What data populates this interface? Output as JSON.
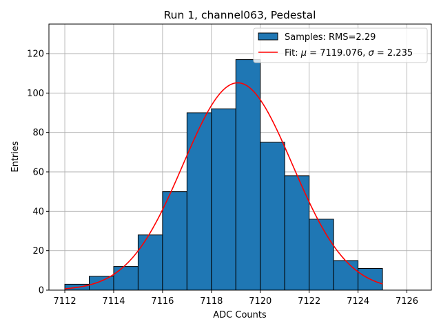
{
  "chart_data": {
    "type": "bar",
    "title": "Run 1, channel063, Pedestal",
    "xlabel": "ADC Counts",
    "ylabel": "Entries",
    "xlim": [
      7111.35,
      7127.0
    ],
    "ylim": [
      0,
      135
    ],
    "xticks": [
      7112,
      7114,
      7116,
      7118,
      7120,
      7122,
      7124,
      7126
    ],
    "yticks": [
      0,
      20,
      40,
      60,
      80,
      100,
      120
    ],
    "grid": true,
    "legend_position": "top-right",
    "histogram": {
      "name": "Samples: RMS=2.29",
      "bin_edges": [
        7112,
        7113,
        7114,
        7115,
        7116,
        7117,
        7118,
        7119,
        7120,
        7121,
        7122,
        7123,
        7124,
        7125
      ],
      "counts": [
        3,
        7,
        12,
        28,
        50,
        90,
        92,
        117,
        75,
        58,
        36,
        15,
        11
      ],
      "color": "#1f77b4",
      "edge_color": "#000000"
    },
    "fit": {
      "name_prefix": "Fit: ",
      "mu_symbol": "μ",
      "mu_text": " = 7119.076, ",
      "sigma_symbol": "σ",
      "sigma_text": " = 2.235",
      "mu": 7119.076,
      "sigma": 2.235,
      "amplitude": 105.2,
      "x_range": [
        7112,
        7125
      ],
      "color": "#ff0000"
    }
  }
}
